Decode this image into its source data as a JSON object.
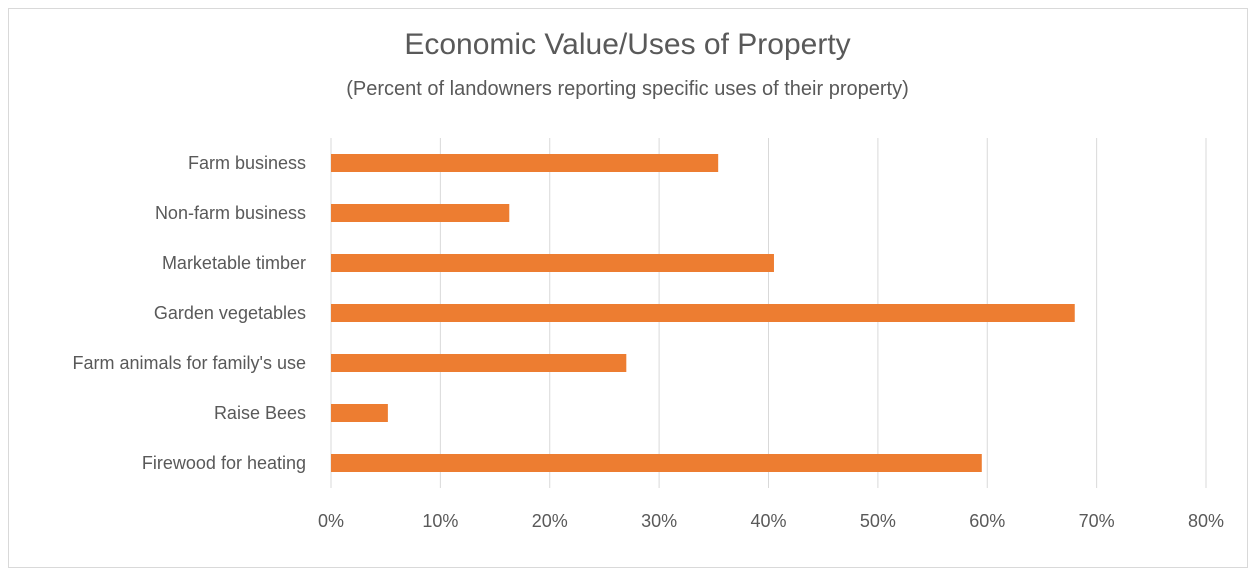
{
  "chart_data": {
    "type": "bar",
    "orientation": "horizontal",
    "title": "Economic Value/Uses of Property",
    "subtitle": "(Percent of landowners reporting specific uses of their property)",
    "categories": [
      "Farm business",
      "Non-farm business",
      "Marketable timber",
      "Garden vegetables",
      "Farm animals for family's use",
      "Raise Bees",
      "Firewood for heating"
    ],
    "values": [
      35.4,
      16.3,
      40.5,
      68.0,
      27.0,
      5.2,
      59.5
    ],
    "xlim": [
      0,
      80
    ],
    "x_ticks": [
      0,
      10,
      20,
      30,
      40,
      50,
      60,
      70,
      80
    ],
    "x_tick_labels": [
      "0%",
      "10%",
      "20%",
      "30%",
      "40%",
      "50%",
      "60%",
      "70%",
      "80%"
    ],
    "grid": true,
    "bar_color": "#ED7D31",
    "grid_color": "#D9D9D9",
    "text_color": "#595959"
  }
}
